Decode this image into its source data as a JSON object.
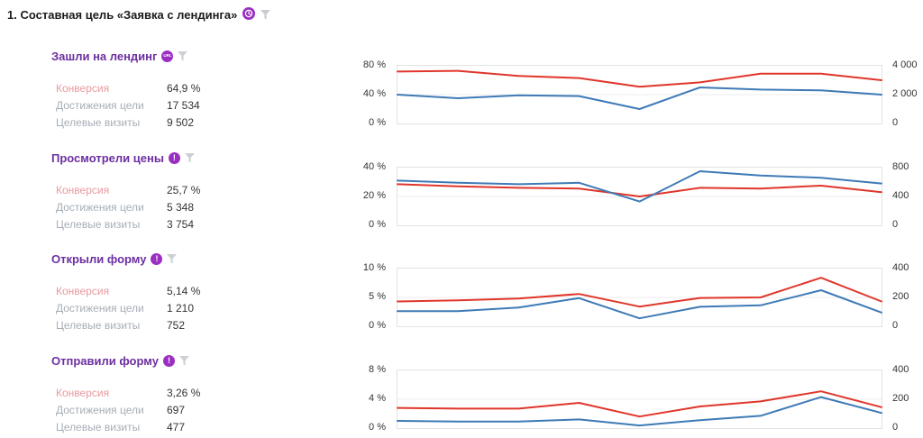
{
  "header": {
    "title": "1. Составная цель «Заявка с лендинга»"
  },
  "stat_labels": {
    "conversion": "Конверсия",
    "goal_reaches": "Достижения цели",
    "target_visits": "Целевые визиты"
  },
  "colors": {
    "line_red": "#e0362b",
    "line_blue": "#3e7ab6",
    "goal_title_purple": "#6c2fa0",
    "badge_purple": "#9b2fc2",
    "conversion_label_pink": "#e8999f",
    "secondary_label_gray": "#a6aeb6"
  },
  "sections": [
    {
      "title": "Зашли на лендинг",
      "badge": "URL",
      "conversion": "64,9 %",
      "goal_reaches": "17 534",
      "target_visits": "9 502"
    },
    {
      "title": "Просмотрели цены",
      "badge": "!",
      "conversion": "25,7 %",
      "goal_reaches": "5 348",
      "target_visits": "3 754"
    },
    {
      "title": "Открыли форму",
      "badge": "!",
      "conversion": "5,14 %",
      "goal_reaches": "1 210",
      "target_visits": "752"
    },
    {
      "title": "Отправили форму",
      "badge": "!",
      "conversion": "3,26 %",
      "goal_reaches": "697",
      "target_visits": "477"
    }
  ],
  "chart_data": [
    {
      "type": "line",
      "title": "Зашли на лендинг",
      "ylim_left": [
        0,
        80
      ],
      "ylim_right": [
        0,
        4000
      ],
      "left_ticks": [
        "80 %",
        "40 %",
        "0 %"
      ],
      "right_ticks": [
        "4 000",
        "2 000",
        "0"
      ],
      "grid": "mid-horizontal",
      "legend": "none",
      "x_tick_labels_visible": false,
      "series": [
        {
          "name": "Конверсия, %",
          "axis": "left",
          "color": "#e0362b",
          "values": [
            72,
            73,
            66,
            63,
            51,
            57,
            69,
            69,
            60
          ]
        },
        {
          "name": "Достижения цели",
          "axis": "right",
          "color": "#3e7ab6",
          "values": [
            2000,
            1750,
            1950,
            1900,
            1000,
            2500,
            2350,
            2300,
            2000
          ]
        }
      ]
    },
    {
      "type": "line",
      "title": "Просмотрели цены",
      "ylim_left": [
        0,
        40
      ],
      "ylim_right": [
        0,
        800
      ],
      "left_ticks": [
        "40 %",
        "20 %",
        "0 %"
      ],
      "right_ticks": [
        "800",
        "400",
        "0"
      ],
      "grid": "mid-horizontal",
      "legend": "none",
      "x_tick_labels_visible": false,
      "series": [
        {
          "name": "Конверсия, %",
          "axis": "left",
          "color": "#e0362b",
          "values": [
            28.5,
            27,
            26,
            25.5,
            20,
            26,
            25.5,
            27.5,
            23
          ]
        },
        {
          "name": "Достижения цели",
          "axis": "right",
          "color": "#3e7ab6",
          "values": [
            620,
            590,
            570,
            590,
            330,
            750,
            690,
            660,
            580
          ]
        }
      ]
    },
    {
      "type": "line",
      "title": "Открыли форму",
      "ylim_left": [
        0,
        10
      ],
      "ylim_right": [
        0,
        400
      ],
      "left_ticks": [
        "10 %",
        "5 %",
        "0 %"
      ],
      "right_ticks": [
        "400",
        "200",
        "0"
      ],
      "grid": "mid-horizontal",
      "legend": "none",
      "x_tick_labels_visible": false,
      "series": [
        {
          "name": "Конверсия, %",
          "axis": "left",
          "color": "#e0362b",
          "values": [
            4.3,
            4.5,
            4.8,
            5.6,
            3.4,
            4.9,
            5.0,
            8.4,
            4.3
          ]
        },
        {
          "name": "Достижения цели",
          "axis": "right",
          "color": "#3e7ab6",
          "values": [
            105,
            105,
            130,
            195,
            55,
            135,
            145,
            250,
            95
          ]
        }
      ]
    },
    {
      "type": "line",
      "title": "Отправили форму",
      "ylim_left": [
        0,
        8
      ],
      "ylim_right": [
        0,
        400
      ],
      "left_ticks": [
        "8 %",
        "4 %",
        "0 %"
      ],
      "right_ticks": [
        "400",
        "200",
        "0"
      ],
      "grid": "mid-horizontal",
      "legend": "none",
      "x_tick_labels_visible": false,
      "series": [
        {
          "name": "Конверсия, %",
          "axis": "left",
          "color": "#e0362b",
          "values": [
            2.8,
            2.7,
            2.7,
            3.5,
            1.6,
            3.0,
            3.7,
            5.1,
            2.9
          ]
        },
        {
          "name": "Достижения цели",
          "axis": "right",
          "color": "#3e7ab6",
          "values": [
            50,
            45,
            45,
            60,
            18,
            55,
            85,
            215,
            105
          ]
        }
      ]
    }
  ]
}
